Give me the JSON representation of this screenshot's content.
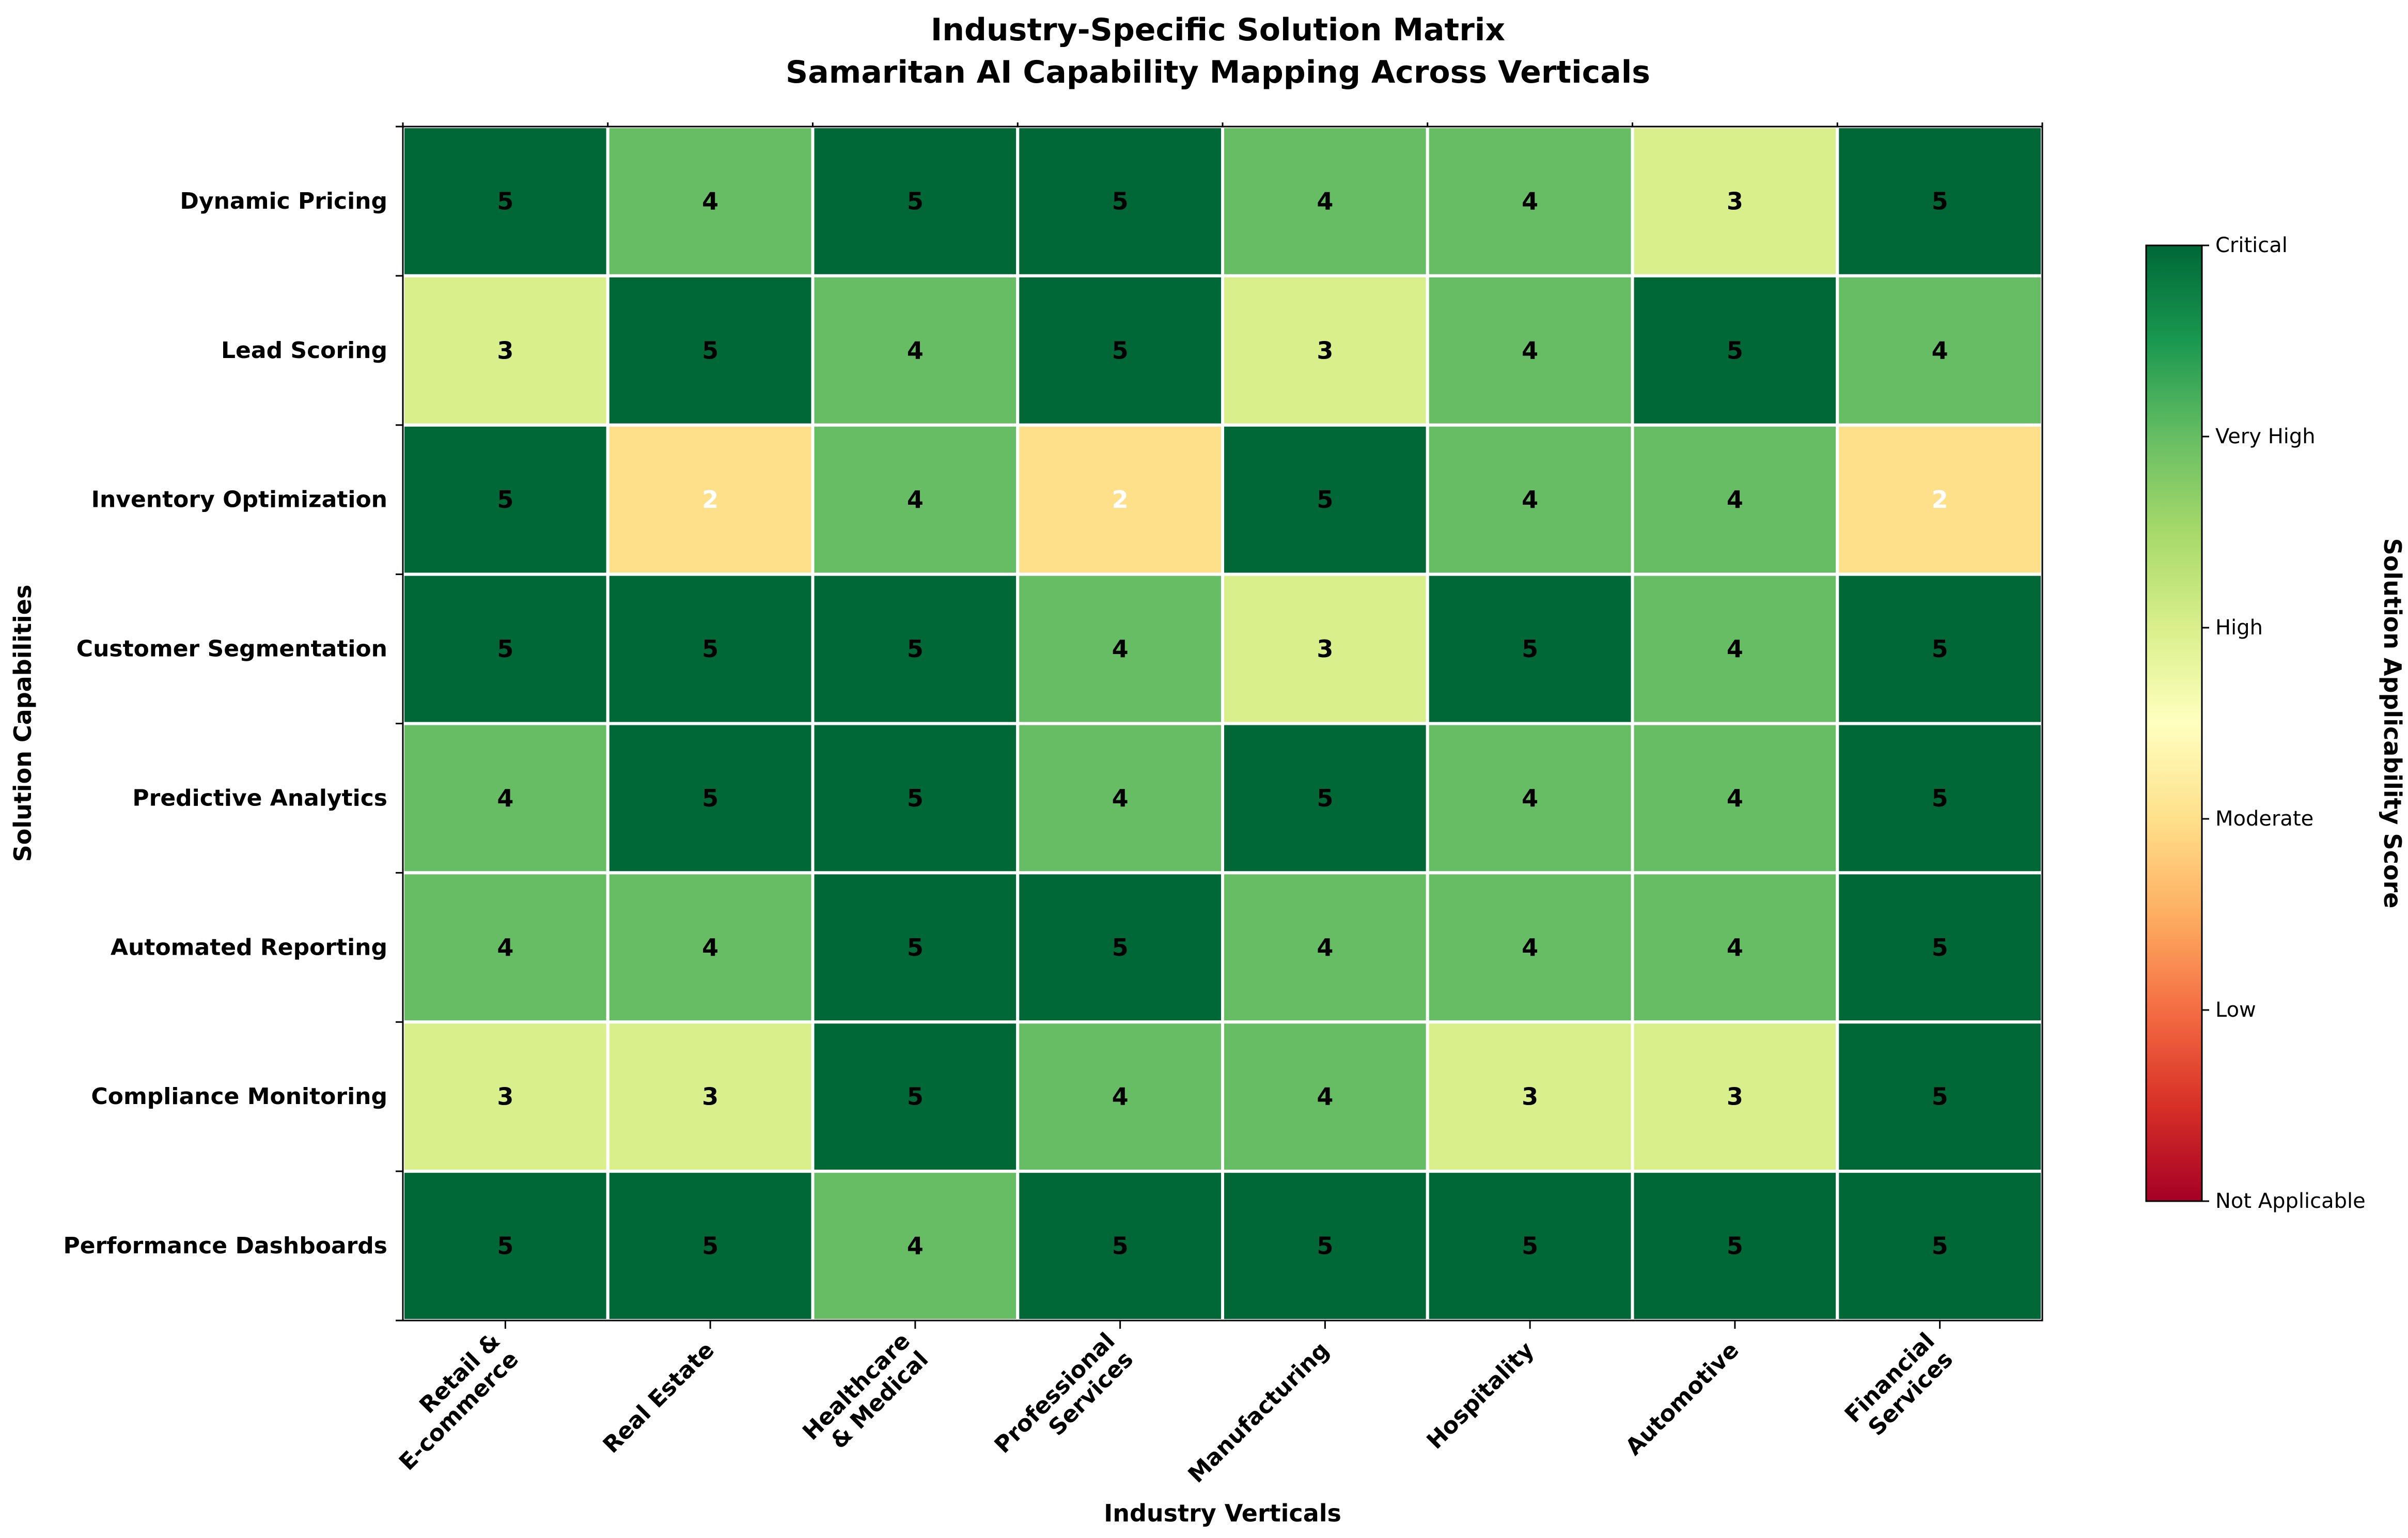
{
  "chart_data": {
    "type": "heatmap",
    "title": "Industry-Specific Solution Matrix",
    "subtitle": "Samaritan AI Capability Mapping Across Verticals",
    "xlabel": "Industry Verticals",
    "ylabel": "Solution Capabilities",
    "x_categories": [
      [
        "Retail &",
        "E-commerce"
      ],
      [
        "Real Estate"
      ],
      [
        "Healthcare",
        "& Medical"
      ],
      [
        "Professional",
        "Services"
      ],
      [
        "Manufacturing"
      ],
      [
        "Hospitality"
      ],
      [
        "Automotive"
      ],
      [
        "Financial",
        "Services"
      ]
    ],
    "y_categories": [
      "Dynamic Pricing",
      "Lead Scoring",
      "Inventory Optimization",
      "Customer Segmentation",
      "Predictive Analytics",
      "Automated Reporting",
      "Compliance Monitoring",
      "Performance Dashboards"
    ],
    "values": [
      [
        5,
        4,
        5,
        5,
        4,
        4,
        3,
        5
      ],
      [
        3,
        5,
        4,
        5,
        3,
        4,
        5,
        4
      ],
      [
        5,
        2,
        4,
        2,
        5,
        4,
        4,
        2
      ],
      [
        5,
        5,
        5,
        4,
        3,
        5,
        4,
        5
      ],
      [
        4,
        5,
        5,
        4,
        5,
        4,
        4,
        5
      ],
      [
        4,
        4,
        5,
        5,
        4,
        4,
        4,
        5
      ],
      [
        3,
        3,
        5,
        4,
        4,
        3,
        3,
        5
      ],
      [
        5,
        5,
        4,
        5,
        5,
        5,
        5,
        5
      ]
    ],
    "value_range": [
      0,
      5
    ],
    "colormap": "RdYlGn",
    "cell_colors": {
      "2": "#fee08b",
      "3": "#d9ef8b",
      "4": "#66bd63",
      "5": "#006837"
    },
    "text_colors": {
      "2": "#ffffff",
      "3": "#000000",
      "4": "#000000",
      "5": "#000000"
    },
    "colorbar": {
      "label": "Solution Applicability Score",
      "ticks": [
        {
          "value": 5,
          "label": "Critical"
        },
        {
          "value": 4,
          "label": "Very High"
        },
        {
          "value": 3,
          "label": "High"
        },
        {
          "value": 2,
          "label": "Moderate"
        },
        {
          "value": 1,
          "label": "Low"
        },
        {
          "value": 0,
          "label": "Not Applicable"
        }
      ],
      "gradient": [
        "#a50026",
        "#d73027",
        "#f46d43",
        "#fdae61",
        "#fee08b",
        "#ffffbf",
        "#d9ef8b",
        "#a6d96a",
        "#66bd63",
        "#1a9850",
        "#006837"
      ]
    },
    "grid": false
  }
}
